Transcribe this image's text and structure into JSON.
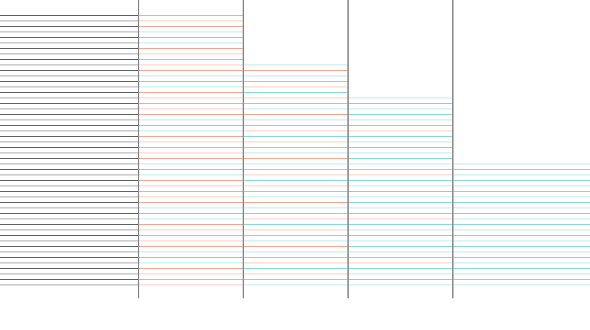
{
  "colors": {
    "background": "#ffffff",
    "divider": "#666666",
    "line_dark": "#5f5f5f",
    "line_salmon": "#f2a58f",
    "line_cyan": "#86d8de"
  },
  "panels": [
    {
      "name": "panel-1",
      "line_count": 50,
      "pattern": [
        "dark"
      ]
    },
    {
      "name": "panel-2",
      "line_count": 50,
      "pattern": [
        "salmon",
        "cyan",
        "salmon",
        "salmon",
        "cyan",
        "salmon",
        "cyan",
        "salmon"
      ]
    },
    {
      "name": "panel-3",
      "line_count": 41,
      "pattern": [
        "cyan",
        "cyan",
        "salmon",
        "cyan",
        "salmon",
        "cyan",
        "cyan",
        "salmon"
      ]
    },
    {
      "name": "panel-4",
      "line_count": 35,
      "pattern": [
        "cyan",
        "salmon",
        "cyan",
        "cyan",
        "salmon",
        "cyan",
        "cyan",
        "cyan"
      ]
    },
    {
      "name": "panel-5",
      "line_count": 23,
      "pattern": [
        "cyan"
      ]
    }
  ]
}
